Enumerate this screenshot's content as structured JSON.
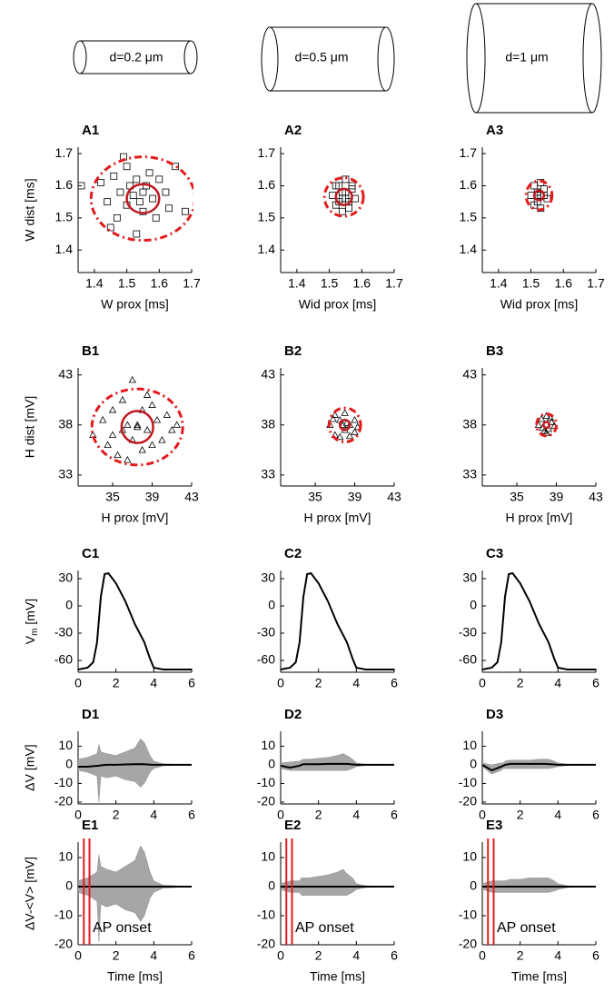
{
  "header": {
    "cylinders": [
      "d=0.2 μm",
      "d=0.5 μm",
      "d=1 μm"
    ]
  },
  "chart_data": [
    {
      "type": "scatter",
      "label": "A1",
      "xlabel": "W prox [ms]",
      "ylabel": "W dist [ms]",
      "marker": "square",
      "color": "#000000",
      "xlim": [
        1.35,
        1.7
      ],
      "ylim": [
        1.33,
        1.72
      ],
      "xticks": [
        1.4,
        1.5,
        1.6,
        1.7
      ],
      "yticks": [
        1.4,
        1.5,
        1.6,
        1.7
      ],
      "x": [
        1.36,
        1.42,
        1.44,
        1.46,
        1.47,
        1.48,
        1.5,
        1.5,
        1.51,
        1.52,
        1.53,
        1.54,
        1.55,
        1.55,
        1.56,
        1.57,
        1.58,
        1.59,
        1.6,
        1.62,
        1.63,
        1.65,
        1.68,
        1.45,
        1.49,
        1.53
      ],
      "values": [
        1.6,
        1.61,
        1.55,
        1.63,
        1.5,
        1.58,
        1.66,
        1.54,
        1.6,
        1.57,
        1.62,
        1.55,
        1.58,
        1.52,
        1.6,
        1.64,
        1.56,
        1.5,
        1.62,
        1.58,
        1.53,
        1.66,
        1.52,
        1.47,
        1.69,
        1.45
      ],
      "ellipses": [
        {
          "cx": 1.55,
          "cy": 1.56,
          "rx": 0.16,
          "ry": 0.13,
          "style": "dashdot",
          "color": "#e41a1c"
        },
        {
          "cx": 1.55,
          "cy": 1.56,
          "rx": 0.05,
          "ry": 0.045,
          "style": "solid",
          "color": "#c0161c"
        }
      ]
    },
    {
      "type": "scatter",
      "label": "A2",
      "xlabel": "Wid prox [ms]",
      "marker": "square",
      "color": "#000000",
      "xlim": [
        1.35,
        1.7
      ],
      "ylim": [
        1.33,
        1.72
      ],
      "xticks": [
        1.4,
        1.5,
        1.6,
        1.7
      ],
      "yticks": [
        1.4,
        1.5,
        1.6,
        1.7
      ],
      "x": [
        1.51,
        1.52,
        1.53,
        1.54,
        1.54,
        1.55,
        1.55,
        1.56,
        1.57,
        1.58,
        1.52,
        1.56,
        1.53,
        1.57,
        1.55,
        1.54
      ],
      "values": [
        1.57,
        1.54,
        1.6,
        1.56,
        1.52,
        1.58,
        1.62,
        1.55,
        1.59,
        1.56,
        1.6,
        1.53,
        1.55,
        1.6,
        1.56,
        1.58
      ],
      "ellipses": [
        {
          "cx": 1.545,
          "cy": 1.565,
          "rx": 0.06,
          "ry": 0.06,
          "style": "dashdot",
          "color": "#e41a1c"
        },
        {
          "cx": 1.545,
          "cy": 1.565,
          "rx": 0.025,
          "ry": 0.025,
          "style": "solid",
          "color": "#c0161c"
        }
      ]
    },
    {
      "type": "scatter",
      "label": "A3",
      "xlabel": "Wid prox [ms]",
      "marker": "square",
      "color": "#000000",
      "xlim": [
        1.35,
        1.7
      ],
      "ylim": [
        1.33,
        1.72
      ],
      "xticks": [
        1.4,
        1.5,
        1.6,
        1.7
      ],
      "yticks": [
        1.4,
        1.5,
        1.6,
        1.7
      ],
      "x": [
        1.5,
        1.51,
        1.52,
        1.52,
        1.53,
        1.54,
        1.55,
        1.53,
        1.51,
        1.52,
        1.54,
        1.53
      ],
      "values": [
        1.57,
        1.6,
        1.55,
        1.58,
        1.61,
        1.57,
        1.56,
        1.53,
        1.54,
        1.57,
        1.59,
        1.57
      ],
      "ellipses": [
        {
          "cx": 1.525,
          "cy": 1.57,
          "rx": 0.04,
          "ry": 0.045,
          "style": "dashdot",
          "color": "#e41a1c"
        },
        {
          "cx": 1.525,
          "cy": 1.57,
          "rx": 0.015,
          "ry": 0.015,
          "style": "solid",
          "color": "#c0161c"
        }
      ]
    },
    {
      "type": "scatter",
      "label": "B1",
      "xlabel": "H prox [mV]",
      "ylabel": "H dist [mV]",
      "marker": "triangle",
      "color": "#000000",
      "xlim": [
        31.5,
        43
      ],
      "ylim": [
        31.9,
        43.7
      ],
      "xticks": [
        35,
        39,
        43
      ],
      "yticks": [
        33,
        38,
        43
      ],
      "x": [
        33,
        34,
        34.5,
        35,
        35.5,
        36,
        36,
        36.5,
        37,
        37,
        37.5,
        38,
        38,
        38.5,
        39,
        39,
        39.5,
        40,
        40.5,
        41,
        41.5,
        36.5,
        38.5,
        37.5,
        35
      ],
      "values": [
        37,
        38.5,
        36,
        39.5,
        35,
        37.5,
        40.5,
        38,
        36.5,
        42.5,
        38,
        35.5,
        39.5,
        37.5,
        36,
        40,
        38.5,
        36.5,
        39,
        37.5,
        38,
        34.5,
        41,
        37.8,
        37
      ],
      "ellipses": [
        {
          "cx": 37.5,
          "cy": 37.8,
          "rx": 4.6,
          "ry": 3.8,
          "style": "dashdot",
          "color": "#e41a1c"
        },
        {
          "cx": 37.5,
          "cy": 37.8,
          "rx": 1.6,
          "ry": 1.6,
          "style": "solid",
          "color": "#c0161c"
        }
      ]
    },
    {
      "type": "scatter",
      "label": "B2",
      "xlabel": "H prox [mV]",
      "marker": "triangle",
      "color": "#000000",
      "xlim": [
        31.5,
        43
      ],
      "ylim": [
        31.9,
        43.7
      ],
      "xticks": [
        35,
        39,
        43
      ],
      "yticks": [
        33,
        38,
        43
      ],
      "x": [
        36.5,
        37,
        37,
        37.5,
        37.5,
        38,
        38,
        38.5,
        38.5,
        39,
        39,
        37.8,
        38.2,
        36.8,
        39.3
      ],
      "values": [
        38,
        37,
        39,
        38.5,
        36.8,
        37.5,
        39.2,
        38,
        36.9,
        38.5,
        37.3,
        38,
        38.2,
        38.6,
        37.8
      ],
      "ellipses": [
        {
          "cx": 38,
          "cy": 38,
          "rx": 1.6,
          "ry": 1.7,
          "style": "dashdot",
          "color": "#e41a1c"
        },
        {
          "cx": 38,
          "cy": 38,
          "rx": 0.5,
          "ry": 0.5,
          "style": "solid",
          "color": "#c0161c"
        }
      ]
    },
    {
      "type": "scatter",
      "label": "B3",
      "xlabel": "H prox [mV]",
      "marker": "triangle",
      "color": "#000000",
      "xlim": [
        31.5,
        43
      ],
      "ylim": [
        31.9,
        43.7
      ],
      "xticks": [
        35,
        39,
        43
      ],
      "yticks": [
        33,
        38,
        43
      ],
      "x": [
        37.2,
        37.5,
        37.8,
        38,
        38.2,
        38.5,
        38.8,
        37.6,
        38.4,
        38
      ],
      "values": [
        38,
        38.6,
        37.4,
        38.9,
        37.6,
        38.3,
        37.9,
        37.7,
        38.7,
        37.2
      ],
      "ellipses": [
        {
          "cx": 38,
          "cy": 38,
          "rx": 1,
          "ry": 1.1,
          "style": "dashdot",
          "color": "#e41a1c"
        },
        {
          "cx": 38,
          "cy": 38,
          "rx": 0.3,
          "ry": 0.3,
          "style": "solid",
          "color": "#c0161c"
        }
      ]
    },
    {
      "type": "line",
      "label": "C1",
      "ylabel": {
        "main": "V",
        "sub": "m",
        "rest": " [mV]"
      },
      "color": "#000000",
      "xlim": [
        0,
        6
      ],
      "ylim": [
        -73,
        39
      ],
      "xticks": [
        0,
        2,
        4,
        6
      ],
      "yticks": [
        30,
        0,
        -30,
        -60
      ],
      "x": [
        0,
        0.5,
        0.8,
        1.0,
        1.2,
        1.4,
        1.6,
        2,
        2.5,
        3,
        3.5,
        3.8,
        4,
        4.5,
        6
      ],
      "values": [
        -70,
        -68,
        -62,
        -40,
        10,
        35,
        36,
        25,
        5,
        -20,
        -40,
        -58,
        -68,
        -70,
        -70
      ]
    },
    {
      "type": "line",
      "label": "C2",
      "color": "#000000",
      "xlim": [
        0,
        6
      ],
      "ylim": [
        -73,
        39
      ],
      "xticks": [
        0,
        2,
        4,
        6
      ],
      "yticks": [
        30,
        0,
        -30,
        -60
      ],
      "x": [
        0,
        0.5,
        0.8,
        1.0,
        1.2,
        1.4,
        1.6,
        2,
        2.5,
        3,
        3.5,
        3.8,
        4,
        4.5,
        6
      ],
      "values": [
        -70,
        -68,
        -62,
        -40,
        10,
        35,
        36,
        25,
        5,
        -20,
        -40,
        -58,
        -68,
        -70,
        -70
      ]
    },
    {
      "type": "line",
      "label": "C3",
      "color": "#000000",
      "xlim": [
        0,
        6
      ],
      "ylim": [
        -73,
        39
      ],
      "xticks": [
        0,
        2,
        4,
        6
      ],
      "yticks": [
        30,
        0,
        -30,
        -60
      ],
      "x": [
        0,
        0.5,
        0.8,
        1.0,
        1.2,
        1.4,
        1.6,
        2,
        2.5,
        3,
        3.5,
        3.8,
        4,
        4.5,
        6
      ],
      "values": [
        -70,
        -68,
        -62,
        -40,
        10,
        35,
        36,
        25,
        5,
        -20,
        -40,
        -58,
        -68,
        -70,
        -70
      ]
    },
    {
      "type": "band",
      "label": "D1",
      "ylabel": "ΔV [mV]",
      "color": "#000000",
      "xlim": [
        0,
        6
      ],
      "ylim": [
        -21,
        18
      ],
      "xticks": [
        0,
        2,
        4,
        6
      ],
      "yticks": [
        10,
        0,
        -10,
        -20
      ],
      "x": [
        0,
        0.5,
        1,
        1.1,
        1.2,
        1.5,
        2,
        2.5,
        3,
        3.3,
        3.5,
        3.8,
        4,
        4.5,
        6
      ],
      "band": {
        "color": "#a6a6a6",
        "upper": [
          3,
          4,
          6,
          11,
          7,
          6,
          5,
          7,
          9,
          14,
          12,
          5,
          2,
          0.5,
          0
        ],
        "lower": [
          -3,
          -4,
          -6,
          -20,
          -6,
          -7,
          -6,
          -8,
          -9,
          -12,
          -10,
          -4,
          -2,
          -0.5,
          0
        ]
      },
      "values": [
        -1,
        -1,
        -0.5,
        -0.5,
        -0.3,
        0,
        0,
        0.2,
        0.3,
        0.4,
        0.3,
        0.1,
        0,
        0,
        0
      ]
    },
    {
      "type": "band",
      "label": "D2",
      "color": "#000000",
      "xlim": [
        0,
        6
      ],
      "ylim": [
        -21,
        18
      ],
      "xticks": [
        0,
        2,
        4,
        6
      ],
      "yticks": [
        10,
        0,
        -10,
        -20
      ],
      "x": [
        0,
        0.5,
        1,
        1.1,
        1.2,
        1.5,
        2,
        2.5,
        3,
        3.3,
        3.5,
        3.8,
        4,
        4.5,
        6
      ],
      "band": {
        "color": "#a6a6a6",
        "upper": [
          1,
          1.5,
          2,
          2.5,
          3,
          3,
          3.5,
          4,
          5,
          6,
          5,
          3,
          1,
          0.3,
          0
        ],
        "lower": [
          -2,
          -3,
          -3,
          -3,
          -3,
          -3,
          -3,
          -3,
          -3,
          -3,
          -3,
          -2,
          -1,
          -0.3,
          0
        ]
      },
      "values": [
        -0.5,
        -1.5,
        -0.5,
        0,
        0.3,
        0.3,
        0.3,
        0.5,
        0.5,
        0.5,
        0.5,
        0.2,
        0,
        0,
        0
      ]
    },
    {
      "type": "band",
      "label": "D3",
      "color": "#000000",
      "xlim": [
        0,
        6
      ],
      "ylim": [
        -21,
        18
      ],
      "xticks": [
        0,
        2,
        4,
        6
      ],
      "yticks": [
        10,
        0,
        -10,
        -20
      ],
      "x": [
        0,
        0.5,
        1,
        1.1,
        1.2,
        1.5,
        2,
        2.5,
        3,
        3.3,
        3.5,
        3.8,
        4,
        4.5,
        6
      ],
      "band": {
        "color": "#a6a6a6",
        "upper": [
          1,
          0,
          1,
          1,
          2,
          2.5,
          2.5,
          2.5,
          3,
          3,
          3,
          2,
          1,
          0.3,
          0
        ],
        "lower": [
          -1,
          -5,
          -3,
          -2,
          -2,
          -2,
          -2,
          -2,
          -2,
          -2,
          -2,
          -1.5,
          -1,
          -0.3,
          0
        ]
      },
      "values": [
        0,
        -3,
        -1,
        -0.5,
        0,
        0.5,
        0.5,
        0.5,
        0.5,
        0.5,
        0.4,
        0.2,
        0,
        0,
        0
      ]
    },
    {
      "type": "band",
      "label": "E1",
      "ylabel": "ΔV-<V> [mV]",
      "xlabel": "Time [ms]",
      "color": "#000000",
      "xlim": [
        0,
        6
      ],
      "ylim": [
        -20,
        15.3
      ],
      "xticks": [
        0,
        2,
        4,
        6
      ],
      "yticks": [
        10,
        0,
        -10,
        -20
      ],
      "x": [
        0,
        0.5,
        1,
        1.1,
        1.2,
        1.5,
        2,
        2.5,
        3,
        3.3,
        3.5,
        3.8,
        4,
        4.5,
        6
      ],
      "band": {
        "color": "#a6a6a6",
        "upper": [
          2,
          3,
          5,
          11,
          7,
          6,
          5,
          7,
          9,
          14,
          12,
          5,
          2,
          0.5,
          0
        ],
        "lower": [
          -2,
          -3,
          -5,
          -19,
          -6,
          -7,
          -6,
          -8,
          -9,
          -12,
          -10,
          -4,
          -2,
          -0.5,
          0
        ]
      },
      "values": [
        0,
        0,
        0,
        0,
        0,
        0,
        0,
        0,
        0,
        0,
        0,
        0,
        0,
        0,
        0
      ],
      "vlines": [
        0.3,
        0.6
      ],
      "vline_color": "#e41a1c",
      "annotation": "AP onset"
    },
    {
      "type": "band",
      "label": "E2",
      "xlabel": "Time [ms]",
      "color": "#000000",
      "xlim": [
        0,
        6
      ],
      "ylim": [
        -20,
        15.3
      ],
      "xticks": [
        0,
        2,
        4,
        6
      ],
      "yticks": [
        10,
        0,
        -10,
        -20
      ],
      "x": [
        0,
        0.5,
        1,
        1.1,
        1.2,
        1.5,
        2,
        2.5,
        3,
        3.3,
        3.5,
        3.8,
        4,
        4.5,
        6
      ],
      "band": {
        "color": "#a6a6a6",
        "upper": [
          1,
          2,
          2,
          3,
          3,
          3,
          3.5,
          4,
          5,
          6,
          4.5,
          3,
          1,
          0.3,
          0
        ],
        "lower": [
          -1,
          -2,
          -2,
          -3,
          -3,
          -3,
          -3,
          -3,
          -3,
          -3,
          -3,
          -2,
          -1,
          -0.3,
          0
        ]
      },
      "values": [
        0,
        0,
        0,
        0,
        0,
        0,
        0,
        0,
        0,
        0,
        0,
        0,
        0,
        0,
        0
      ],
      "vlines": [
        0.3,
        0.6
      ],
      "vline_color": "#e41a1c",
      "annotation": "AP onset"
    },
    {
      "type": "band",
      "label": "E3",
      "xlabel": "Time [ms]",
      "color": "#000000",
      "xlim": [
        0,
        6
      ],
      "ylim": [
        -20,
        15.3
      ],
      "xticks": [
        0,
        2,
        4,
        6
      ],
      "yticks": [
        10,
        0,
        -10,
        -20
      ],
      "x": [
        0,
        0.5,
        1,
        1.1,
        1.2,
        1.5,
        2,
        2.5,
        3,
        3.3,
        3.5,
        3.8,
        4,
        4.5,
        6
      ],
      "band": {
        "color": "#a6a6a6",
        "upper": [
          1,
          2,
          2,
          2,
          2,
          2.5,
          2.5,
          3,
          3,
          3,
          3,
          2,
          1,
          0.3,
          0
        ],
        "lower": [
          -1,
          -2,
          -2,
          -2,
          -2,
          -2,
          -2,
          -2,
          -2,
          -2,
          -2,
          -1.5,
          -1,
          -0.3,
          0
        ]
      },
      "values": [
        0,
        0,
        0,
        0,
        0,
        0,
        0,
        0,
        0,
        0,
        0,
        0,
        0,
        0,
        0
      ],
      "vlines": [
        0.3,
        0.6
      ],
      "vline_color": "#e41a1c",
      "annotation": "AP onset"
    }
  ]
}
